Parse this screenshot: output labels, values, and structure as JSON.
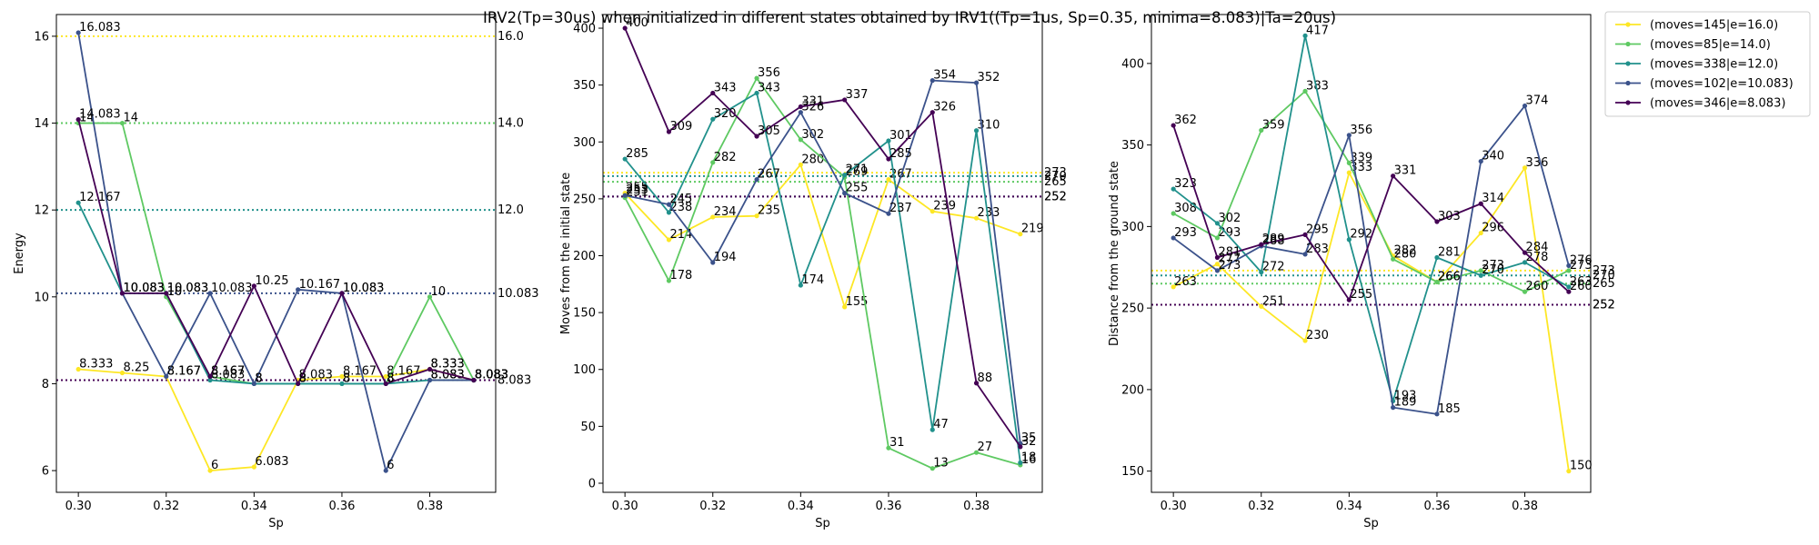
{
  "suptitle": "IRV2(Tp=30us) when initialized in different states obtained by IRV1((Tp=1us, Sp=0.35, minima=8.083)|Ta=20us)",
  "legend": [
    {
      "label": "(moves=145|e=16.0)",
      "color": "#fde725"
    },
    {
      "label": "(moves=85|e=14.0)",
      "color": "#5ec962"
    },
    {
      "label": "(moves=338|e=12.0)",
      "color": "#21918c"
    },
    {
      "label": "(moves=102|e=10.083)",
      "color": "#3b528b"
    },
    {
      "label": "(moves=346|e=8.083)",
      "color": "#440154"
    }
  ],
  "chart_data": [
    {
      "type": "line",
      "xlabel": "Sp",
      "ylabel": "Energy",
      "xlim": [
        0.295,
        0.395
      ],
      "ylim": [
        5.5,
        16.5
      ],
      "xticks": [
        0.3,
        0.32,
        0.34,
        0.36,
        0.38
      ],
      "xtick_labels": [
        "0.30",
        "0.32",
        "0.34",
        "0.36",
        "0.38"
      ],
      "yticks": [
        6,
        8,
        10,
        12,
        14,
        16
      ],
      "ytick_labels": [
        "6",
        "8",
        "10",
        "12",
        "14",
        "16"
      ],
      "x": [
        0.3,
        0.31,
        0.32,
        0.33,
        0.34,
        0.35,
        0.36,
        0.37,
        0.38,
        0.39
      ],
      "series": [
        {
          "name": "(moves=145|e=16.0)",
          "color": "#fde725",
          "values": [
            8.333,
            8.25,
            8.167,
            6.0,
            6.083,
            8.083,
            8.167,
            8.167,
            8.333,
            8.083
          ]
        },
        {
          "name": "(moves=85|e=14.0)",
          "color": "#5ec962",
          "values": [
            14.0,
            14.0,
            10.0,
            8.167,
            8.0,
            8.0,
            8.0,
            8.0,
            10.0,
            8.083
          ]
        },
        {
          "name": "(moves=338|e=12.0)",
          "color": "#21918c",
          "values": [
            12.167,
            10.083,
            10.083,
            8.083,
            8.0,
            8.0,
            8.0,
            8.0,
            8.083,
            8.083
          ]
        },
        {
          "name": "(moves=102|e=10.083)",
          "color": "#3b528b",
          "values": [
            16.083,
            10.083,
            8.167,
            10.083,
            8.0,
            10.167,
            10.083,
            6.0,
            8.083,
            8.083
          ]
        },
        {
          "name": "(moves=346|e=8.083)",
          "color": "#440154",
          "values": [
            14.083,
            10.083,
            10.083,
            8.167,
            10.25,
            8.0,
            10.083,
            8.0,
            8.333,
            8.083
          ]
        }
      ],
      "hlines": [
        {
          "value": 16.0,
          "label": "16.0",
          "color": "#fde725"
        },
        {
          "value": 14.0,
          "label": "14.0",
          "color": "#5ec962"
        },
        {
          "value": 12.0,
          "label": "12.0",
          "color": "#21918c"
        },
        {
          "value": 10.083,
          "label": "10.083",
          "color": "#3b528b"
        },
        {
          "value": 8.083,
          "label": "8.083",
          "color": "#440154"
        }
      ]
    },
    {
      "type": "line",
      "xlabel": "Sp",
      "ylabel": "Moves from the initial state",
      "xlim": [
        0.295,
        0.395
      ],
      "ylim": [
        -8,
        412
      ],
      "xticks": [
        0.3,
        0.32,
        0.34,
        0.36,
        0.38
      ],
      "xtick_labels": [
        "0.30",
        "0.32",
        "0.34",
        "0.36",
        "0.38"
      ],
      "yticks": [
        0,
        50,
        100,
        150,
        200,
        250,
        300,
        350,
        400
      ],
      "ytick_labels": [
        "0",
        "50",
        "100",
        "150",
        "200",
        "250",
        "300",
        "350",
        "400"
      ],
      "x": [
        0.3,
        0.31,
        0.32,
        0.33,
        0.34,
        0.35,
        0.36,
        0.37,
        0.38,
        0.39
      ],
      "series": [
        {
          "name": "(moves=145|e=16.0)",
          "color": "#fde725",
          "values": [
            255,
            214,
            234,
            235,
            280,
            155,
            267,
            239,
            233,
            219
          ]
        },
        {
          "name": "(moves=85|e=14.0)",
          "color": "#5ec962",
          "values": [
            251,
            178,
            282,
            356,
            302,
            269,
            31,
            13,
            27,
            16
          ]
        },
        {
          "name": "(moves=338|e=12.0)",
          "color": "#21918c",
          "values": [
            285,
            238,
            320,
            343,
            174,
            271,
            301,
            47,
            310,
            18
          ]
        },
        {
          "name": "(moves=102|e=10.083)",
          "color": "#3b528b",
          "values": [
            253,
            245,
            194,
            267,
            326,
            255,
            237,
            354,
            352,
            35
          ]
        },
        {
          "name": "(moves=346|e=8.083)",
          "color": "#440154",
          "values": [
            400,
            309,
            343,
            305,
            331,
            337,
            285,
            326,
            88,
            32
          ]
        }
      ],
      "hlines": [
        {
          "value": 273,
          "label": "273",
          "color": "#fde725"
        },
        {
          "value": 265,
          "label": "265",
          "color": "#5ec962"
        },
        {
          "value": 270,
          "label": "270",
          "color": "#21918c"
        },
        {
          "value": 252,
          "label": "252",
          "color": "#3b528b"
        },
        {
          "value": 252,
          "label": "252",
          "color": "#440154"
        }
      ]
    },
    {
      "type": "line",
      "xlabel": "Sp",
      "ylabel": "Distance from the ground state",
      "xlim": [
        0.295,
        0.395
      ],
      "ylim": [
        137,
        430
      ],
      "xticks": [
        0.3,
        0.32,
        0.34,
        0.36,
        0.38
      ],
      "xtick_labels": [
        "0.30",
        "0.32",
        "0.34",
        "0.36",
        "0.38"
      ],
      "yticks": [
        150,
        200,
        250,
        300,
        350,
        400
      ],
      "ytick_labels": [
        "150",
        "200",
        "250",
        "300",
        "350",
        "400"
      ],
      "x": [
        0.3,
        0.31,
        0.32,
        0.33,
        0.34,
        0.35,
        0.36,
        0.37,
        0.38,
        0.39
      ],
      "series": [
        {
          "name": "(moves=145|e=16.0)",
          "color": "#fde725",
          "values": [
            263,
            277,
            251,
            230,
            333,
            282,
            266,
            296,
            336,
            150
          ]
        },
        {
          "name": "(moves=85|e=14.0)",
          "color": "#5ec962",
          "values": [
            308,
            293,
            359,
            383,
            339,
            280,
            266,
            273,
            260,
            273
          ]
        },
        {
          "name": "(moves=338|e=12.0)",
          "color": "#21918c",
          "values": [
            323,
            302,
            272,
            417,
            292,
            193,
            281,
            270,
            278,
            263
          ]
        },
        {
          "name": "(moves=102|e=10.083)",
          "color": "#3b528b",
          "values": [
            293,
            273,
            288,
            283,
            356,
            189,
            185,
            340,
            374,
            276
          ]
        },
        {
          "name": "(moves=346|e=8.083)",
          "color": "#440154",
          "values": [
            362,
            281,
            289,
            295,
            255,
            331,
            303,
            314,
            284,
            260
          ]
        }
      ],
      "hlines": [
        {
          "value": 273,
          "label": "273",
          "color": "#fde725"
        },
        {
          "value": 265,
          "label": "265",
          "color": "#5ec962"
        },
        {
          "value": 270,
          "label": "270",
          "color": "#21918c"
        },
        {
          "value": 252,
          "label": "252",
          "color": "#3b528b"
        },
        {
          "value": 252,
          "label": "252",
          "color": "#440154"
        }
      ]
    }
  ]
}
